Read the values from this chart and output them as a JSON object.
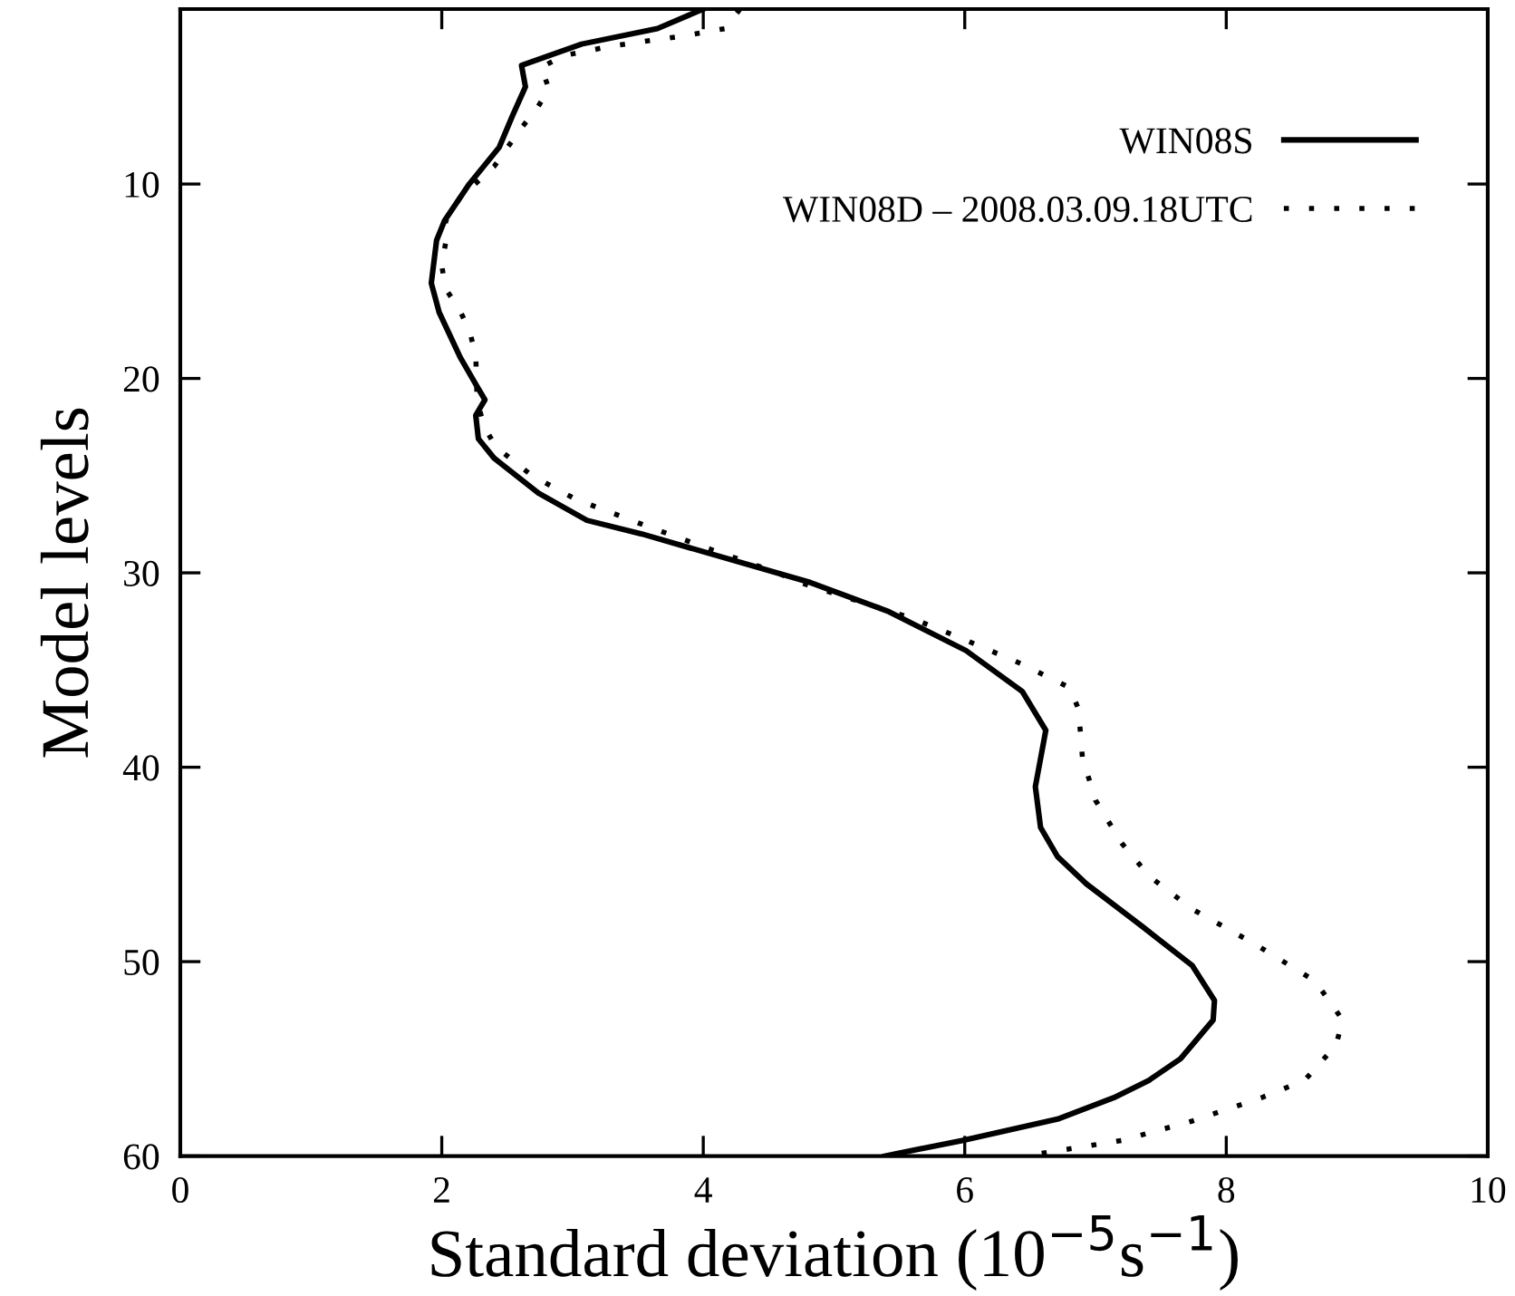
{
  "chart_data": {
    "type": "line",
    "xlabel": "Standard deviation (10$^{−5}$s$^{−1}$)",
    "ylabel": "Model levels",
    "xlim": [
      0,
      10
    ],
    "xticks": [
      0,
      2,
      4,
      6,
      8,
      10
    ],
    "ylim": [
      60,
      1
    ],
    "yticks": [
      10,
      20,
      30,
      40,
      50,
      60
    ],
    "grid": false,
    "legend": "top right",
    "series": [
      {
        "name": "WIN08S",
        "color": "#000000",
        "line_style": "solid",
        "x": [
          4.0,
          3.65,
          3.07,
          2.61,
          2.64,
          2.54,
          2.44,
          2.21,
          2.02,
          1.96,
          1.92,
          1.98,
          2.14,
          2.26,
          2.33,
          2.26,
          2.28,
          2.4,
          2.74,
          3.11,
          3.53,
          4.82,
          5.42,
          6.01,
          6.44,
          6.62,
          6.54,
          6.58,
          6.71,
          6.93,
          7.36,
          7.74,
          7.91,
          7.9,
          7.65,
          7.41,
          7.14,
          6.71,
          5.98,
          5.39
        ],
        "values": [
          1,
          2,
          2.8,
          3.9,
          5,
          6.5,
          8.1,
          10,
          11.9,
          12.9,
          15.1,
          16.6,
          18.9,
          20.3,
          21.1,
          21.9,
          23.1,
          24.1,
          25.9,
          27.3,
          28,
          30.5,
          32,
          34,
          36.1,
          38.1,
          41,
          43.1,
          44.6,
          46,
          48.2,
          50.2,
          52,
          53,
          55,
          56.1,
          57,
          58.1,
          59.2,
          60
        ]
      },
      {
        "name": "WIN08D – 2008.03.09.18UTC",
        "color": "#000000",
        "line_style": "dotted",
        "x": [
          4.28,
          4.17,
          3.83,
          3.3,
          2.93,
          2.76,
          2.82,
          2.72,
          2.61,
          2.4,
          2.14,
          2.03,
          2.03,
          2.0,
          2.03,
          2.13,
          2.21,
          2.26,
          2.27,
          2.32,
          2.41,
          2.69,
          3.02,
          3.53,
          4.06,
          4.57,
          4.74,
          5.58,
          5.95,
          6.44,
          6.8,
          6.87,
          6.9,
          7.0,
          7.2,
          7.41,
          7.74,
          8.22,
          8.68,
          8.89,
          8.84,
          8.6,
          8.27,
          7.74,
          7.2,
          6.46
        ],
        "values": [
          1,
          2,
          2.4,
          2.9,
          3.4,
          4,
          5.1,
          6.2,
          7.1,
          9.1,
          10.7,
          11.9,
          13,
          14.2,
          15.4,
          16.4,
          17.5,
          18.8,
          21.1,
          22.4,
          23.5,
          25,
          26.2,
          27.5,
          28.8,
          30,
          30.5,
          32.3,
          33.3,
          34.7,
          35.9,
          37,
          39.5,
          41.7,
          43.9,
          45.6,
          47.3,
          49.1,
          51,
          53,
          54.3,
          56.1,
          57,
          58.2,
          59.2,
          60
        ]
      }
    ]
  }
}
